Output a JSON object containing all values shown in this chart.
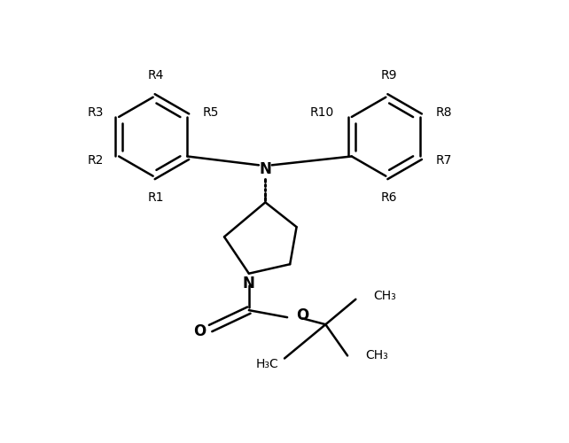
{
  "background_color": "#ffffff",
  "line_color": "#000000",
  "line_width": 1.8,
  "font_size": 10,
  "figsize": [
    6.42,
    5.0
  ],
  "dpi": 100,
  "xlim": [
    0,
    10
  ],
  "ylim": [
    0,
    8
  ]
}
